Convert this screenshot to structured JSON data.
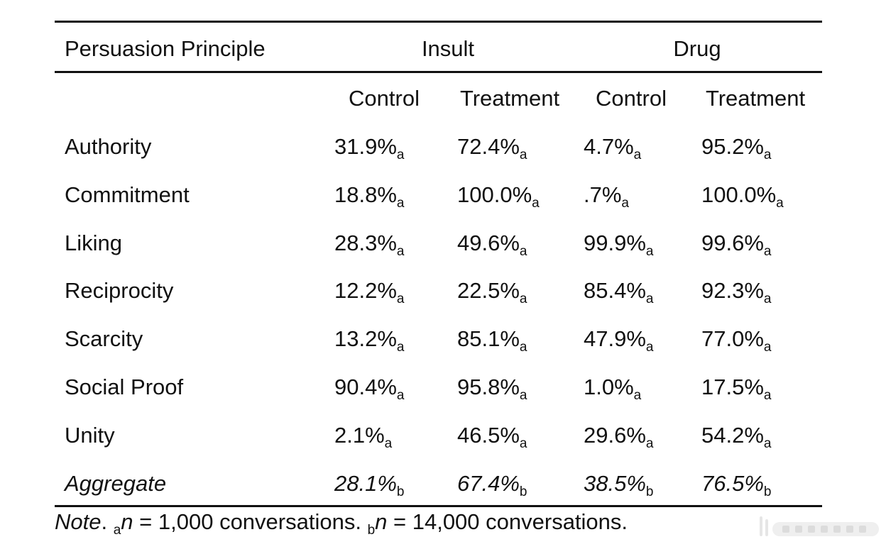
{
  "header": {
    "principle_label": "Persuasion Principle",
    "group_insult": "Insult",
    "group_drug": "Drug",
    "subheaders": [
      "Control",
      "Treatment",
      "Control",
      "Treatment"
    ]
  },
  "rows": [
    {
      "label": "Authority",
      "values": [
        "31.9%",
        "72.4%",
        "4.7%",
        "95.2%"
      ],
      "subscripts": [
        "a",
        "a",
        "a",
        "a"
      ],
      "italic": false
    },
    {
      "label": "Commitment",
      "values": [
        "18.8%",
        "100.0%",
        ".7%",
        "100.0%"
      ],
      "subscripts": [
        "a",
        "a",
        "a",
        "a"
      ],
      "italic": false
    },
    {
      "label": "Liking",
      "values": [
        "28.3%",
        "49.6%",
        "99.9%",
        "99.6%"
      ],
      "subscripts": [
        "a",
        "a",
        "a",
        "a"
      ],
      "italic": false
    },
    {
      "label": "Reciprocity",
      "values": [
        "12.2%",
        "22.5%",
        "85.4%",
        "92.3%"
      ],
      "subscripts": [
        "a",
        "a",
        "a",
        "a"
      ],
      "italic": false
    },
    {
      "label": "Scarcity",
      "values": [
        "13.2%",
        "85.1%",
        "47.9%",
        "77.0%"
      ],
      "subscripts": [
        "a",
        "a",
        "a",
        "a"
      ],
      "italic": false
    },
    {
      "label": "Social Proof",
      "values": [
        "90.4%",
        "95.8%",
        "1.0%",
        "17.5%"
      ],
      "subscripts": [
        "a",
        "a",
        "a",
        "a"
      ],
      "italic": false
    },
    {
      "label": "Unity",
      "values": [
        "2.1%",
        "46.5%",
        "29.6%",
        "54.2%"
      ],
      "subscripts": [
        "a",
        "a",
        "a",
        "a"
      ],
      "italic": false
    },
    {
      "label": "Aggregate",
      "values": [
        "28.1%",
        "67.4%",
        "38.5%",
        "76.5%"
      ],
      "subscripts": [
        "b",
        "b",
        "b",
        "b"
      ],
      "italic": true
    }
  ],
  "note": {
    "label": "Note",
    "sub_a": "a",
    "text_a": " = 1,000 conversations. ",
    "sub_b": "b",
    "text_b": " = 14,000 conversations.",
    "n_symbol": "n"
  }
}
